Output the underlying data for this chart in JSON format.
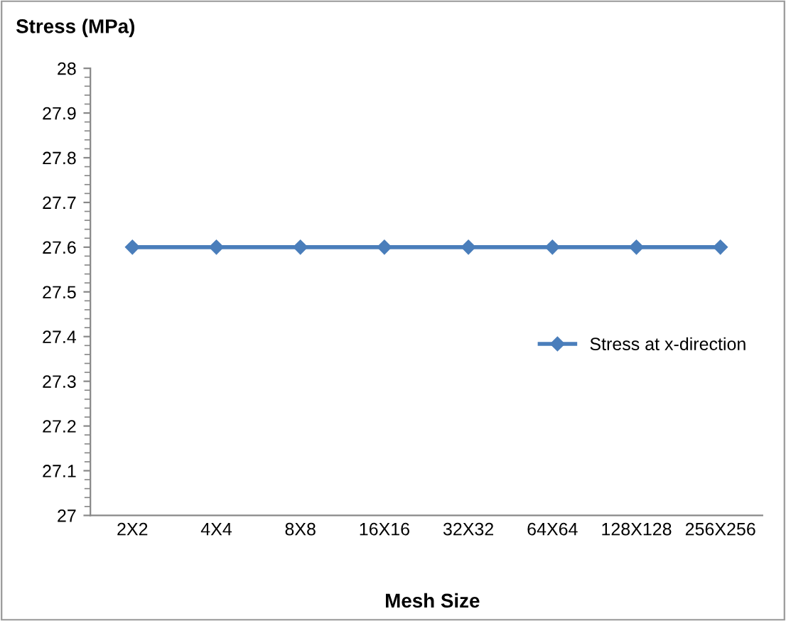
{
  "chart_data": {
    "type": "line",
    "title": "Stress (MPa)",
    "xlabel": "Mesh Size",
    "categories": [
      "2X2",
      "4X4",
      "8X8",
      "16X16",
      "32X32",
      "64X64",
      "128X128",
      "256X256"
    ],
    "series": [
      {
        "name": "Stress at x-direction",
        "color": "#4a7ebb",
        "values": [
          27.6,
          27.6,
          27.6,
          27.6,
          27.6,
          27.6,
          27.6,
          27.6
        ]
      }
    ],
    "ylim": [
      27,
      28
    ],
    "yticks": [
      27,
      27.1,
      27.2,
      27.3,
      27.4,
      27.5,
      27.6,
      27.7,
      27.8,
      27.9,
      28
    ],
    "marker": "diamond",
    "line_style": "solid",
    "legend": "right",
    "grid": false
  }
}
